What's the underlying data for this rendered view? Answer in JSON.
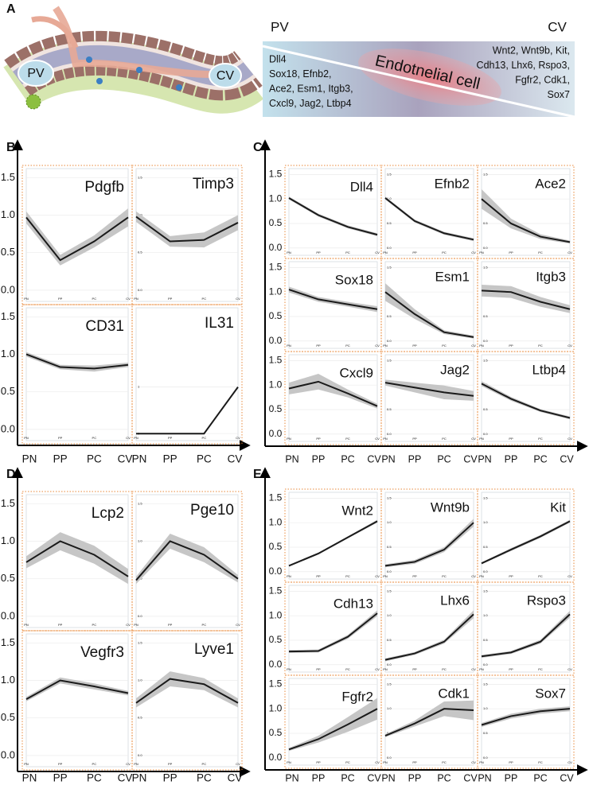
{
  "panel_labels": [
    "A",
    "B",
    "C",
    "D",
    "E"
  ],
  "diagram": {
    "illus_pv": "PV",
    "illus_cv": "CV",
    "left": "PV",
    "right": "CV",
    "center": "Endotnelial cell",
    "pv_genes": [
      "Dll4",
      "Sox18, Efnb2,",
      "Ace2, Esm1, Itgb3,",
      "Cxcl9, Jag2, Ltbp4"
    ],
    "cv_genes": [
      "Wnt2, Wnt9b, Kit,",
      "Cdh13, Lhx6, Rspo3,",
      "Fgfr2, Cdk1,",
      "Sox7"
    ]
  },
  "chart_data": [
    {
      "type": "line",
      "title": "Pdgfb",
      "categories": [
        "PN",
        "PP",
        "PC",
        "CV"
      ],
      "values": [
        0.97,
        0.4,
        0.65,
        0.97
      ],
      "errors": [
        0.08,
        0.07,
        0.08,
        0.12
      ],
      "ylim": [
        -0.15,
        1.62
      ],
      "yticks": [
        {
          "value": 0,
          "label": "0.0"
        },
        0.5,
        {
          "value": 1,
          "label": "1.0"
        },
        {
          "value": 1.5,
          "label": "1.5"
        }
      ],
      "color": "#1a1a1a",
      "band_color": "#c6c6c6",
      "grid": true
    },
    {
      "type": "line",
      "title": "Timp3",
      "categories": [
        "PN",
        "PP",
        "PC",
        "CV"
      ],
      "values": [
        0.98,
        0.65,
        0.67,
        0.9
      ],
      "errors": [
        0.07,
        0.07,
        0.1,
        0.1
      ],
      "ylim": [
        -0.15,
        1.62
      ],
      "yticks": [
        {
          "value": 0,
          "label": "0.0"
        },
        0.5,
        {
          "value": 1,
          "label": "1.0"
        },
        {
          "value": 1.5,
          "label": "1.5"
        }
      ],
      "color": "#1a1a1a",
      "band_color": "#c6c6c6",
      "grid": true
    },
    {
      "type": "line",
      "title": "CD31",
      "categories": [
        "PN",
        "PP",
        "PC",
        "CV"
      ],
      "values": [
        1.0,
        0.83,
        0.81,
        0.86
      ],
      "errors": [
        0.03,
        0.03,
        0.04,
        0.03
      ],
      "ylim": [
        -0.15,
        1.62
      ],
      "yticks": [
        {
          "value": 0,
          "label": "0.0"
        },
        0.5,
        {
          "value": 1,
          "label": "1.0"
        },
        {
          "value": 1.5,
          "label": "1.5"
        }
      ],
      "color": "#1a1a1a",
      "band_color": "#c6c6c6",
      "grid": true
    },
    {
      "type": "line",
      "title": "IL31",
      "categories": [
        "PN",
        "PP",
        "PC",
        "CV"
      ],
      "values": [
        0,
        0,
        0,
        1
      ],
      "errors": [
        0,
        0,
        0,
        0
      ],
      "ylim": [
        -0.15,
        2.7
      ],
      "yticks": [
        0,
        1
      ],
      "color": "#1a1a1a",
      "band_color": "#c6c6c6",
      "grid": true
    },
    {
      "type": "line",
      "title": "Dll4",
      "categories": [
        "PN",
        "PP",
        "PC",
        "CV"
      ],
      "values": [
        1.02,
        0.67,
        0.43,
        0.27
      ],
      "errors": [
        0.03,
        0.03,
        0.03,
        0.03
      ],
      "ylim": [
        -0.15,
        1.62
      ],
      "yticks": [
        {
          "value": 0,
          "label": "0.0"
        },
        0.5,
        {
          "value": 1,
          "label": "1.0"
        },
        {
          "value": 1.5,
          "label": "1.5"
        }
      ],
      "color": "#1a1a1a",
      "band_color": "#c6c6c6",
      "grid": true
    },
    {
      "type": "line",
      "title": "Efnb2",
      "categories": [
        "PN",
        "PP",
        "PC",
        "CV"
      ],
      "values": [
        1.02,
        0.55,
        0.3,
        0.17
      ],
      "errors": [
        0.03,
        0.03,
        0.03,
        0.03
      ],
      "ylim": [
        -0.15,
        1.62
      ],
      "yticks": [
        {
          "value": 0,
          "label": "0.0"
        },
        0.5,
        {
          "value": 1,
          "label": "1.0"
        },
        {
          "value": 1.5,
          "label": "1.5"
        }
      ],
      "color": "#1a1a1a",
      "band_color": "#c6c6c6",
      "grid": true
    },
    {
      "type": "line",
      "title": "Ace2",
      "categories": [
        "PN",
        "PP",
        "PC",
        "CV"
      ],
      "values": [
        1.0,
        0.5,
        0.23,
        0.12
      ],
      "errors": [
        0.2,
        0.1,
        0.05,
        0.03
      ],
      "ylim": [
        -0.15,
        1.62
      ],
      "yticks": [
        {
          "value": 0,
          "label": "0.0"
        },
        0.5,
        {
          "value": 1,
          "label": "1.0"
        },
        {
          "value": 1.5,
          "label": "1.5"
        }
      ],
      "color": "#1a1a1a",
      "band_color": "#c6c6c6",
      "grid": true
    },
    {
      "type": "line",
      "title": "Sox18",
      "categories": [
        "PN",
        "PP",
        "PC",
        "CV"
      ],
      "values": [
        1.05,
        0.85,
        0.75,
        0.65
      ],
      "errors": [
        0.06,
        0.05,
        0.05,
        0.06
      ],
      "ylim": [
        -0.15,
        1.62
      ],
      "yticks": [
        {
          "value": 0,
          "label": "0.0"
        },
        0.5,
        {
          "value": 1,
          "label": "1.0"
        },
        {
          "value": 1.5,
          "label": "1.5"
        }
      ],
      "color": "#1a1a1a",
      "band_color": "#c6c6c6",
      "grid": true
    },
    {
      "type": "line",
      "title": "Esm1",
      "categories": [
        "PN",
        "PP",
        "PC",
        "CV"
      ],
      "values": [
        1.0,
        0.55,
        0.18,
        0.08
      ],
      "errors": [
        0.18,
        0.1,
        0.04,
        0.03
      ],
      "ylim": [
        -0.15,
        1.62
      ],
      "yticks": [
        {
          "value": 0,
          "label": "0.0"
        },
        0.5,
        {
          "value": 1,
          "label": "1.0"
        },
        {
          "value": 1.5,
          "label": "1.5"
        }
      ],
      "color": "#1a1a1a",
      "band_color": "#c6c6c6",
      "grid": true
    },
    {
      "type": "line",
      "title": "Itgb3",
      "categories": [
        "PN",
        "PP",
        "PC",
        "CV"
      ],
      "values": [
        1.03,
        1.0,
        0.8,
        0.65
      ],
      "errors": [
        0.12,
        0.12,
        0.1,
        0.08
      ],
      "ylim": [
        -0.15,
        1.62
      ],
      "yticks": [
        {
          "value": 0,
          "label": "0.0"
        },
        0.5,
        {
          "value": 1,
          "label": "1.0"
        },
        {
          "value": 1.5,
          "label": "1.5"
        }
      ],
      "color": "#1a1a1a",
      "band_color": "#c6c6c6",
      "grid": true
    },
    {
      "type": "line",
      "title": "Cxcl9",
      "categories": [
        "PN",
        "PP",
        "PC",
        "CV"
      ],
      "values": [
        0.93,
        1.07,
        0.83,
        0.57
      ],
      "errors": [
        0.12,
        0.16,
        0.08,
        0.05
      ],
      "ylim": [
        -0.15,
        1.62
      ],
      "yticks": [
        {
          "value": 0,
          "label": "0.0"
        },
        0.5,
        {
          "value": 1,
          "label": "1.0"
        },
        {
          "value": 1.5,
          "label": "1.5"
        }
      ],
      "color": "#1a1a1a",
      "band_color": "#c6c6c6",
      "grid": true
    },
    {
      "type": "line",
      "title": "Jag2",
      "categories": [
        "PN",
        "PP",
        "PC",
        "CV"
      ],
      "values": [
        1.05,
        0.95,
        0.85,
        0.78
      ],
      "errors": [
        0.06,
        0.1,
        0.14,
        0.1
      ],
      "ylim": [
        -0.15,
        1.62
      ],
      "yticks": [
        {
          "value": 0,
          "label": "0.0"
        },
        0.5,
        {
          "value": 1,
          "label": "1.0"
        },
        {
          "value": 1.5,
          "label": "1.5"
        }
      ],
      "color": "#1a1a1a",
      "band_color": "#c6c6c6",
      "grid": true
    },
    {
      "type": "line",
      "title": "Ltbp4",
      "categories": [
        "PN",
        "PP",
        "PC",
        "CV"
      ],
      "values": [
        1.03,
        0.72,
        0.48,
        0.33
      ],
      "errors": [
        0.05,
        0.04,
        0.03,
        0.03
      ],
      "ylim": [
        -0.15,
        1.62
      ],
      "yticks": [
        {
          "value": 0,
          "label": "0.0"
        },
        0.5,
        {
          "value": 1,
          "label": "1.0"
        },
        {
          "value": 1.5,
          "label": "1.5"
        }
      ],
      "color": "#1a1a1a",
      "band_color": "#c6c6c6",
      "grid": true
    },
    {
      "type": "line",
      "title": "Lcp2",
      "categories": [
        "PN",
        "PP",
        "PC",
        "CV"
      ],
      "values": [
        0.72,
        1.0,
        0.82,
        0.53
      ],
      "errors": [
        0.08,
        0.12,
        0.12,
        0.1
      ],
      "ylim": [
        -0.15,
        1.62
      ],
      "yticks": [
        {
          "value": 0,
          "label": "0.0"
        },
        0.5,
        {
          "value": 1,
          "label": "1.0"
        },
        {
          "value": 1.5,
          "label": "1.5"
        }
      ],
      "color": "#1a1a1a",
      "band_color": "#c6c6c6",
      "grid": true
    },
    {
      "type": "line",
      "title": "Pge10",
      "categories": [
        "PN",
        "PP",
        "PC",
        "CV"
      ],
      "values": [
        0.48,
        1.0,
        0.82,
        0.5
      ],
      "errors": [
        0.05,
        0.1,
        0.1,
        0.05
      ],
      "ylim": [
        -0.15,
        1.62
      ],
      "yticks": [
        {
          "value": 0,
          "label": "0.0"
        },
        0.5,
        {
          "value": 1,
          "label": "1.0"
        },
        {
          "value": 1.5,
          "label": "1.5"
        }
      ],
      "color": "#1a1a1a",
      "band_color": "#c6c6c6",
      "grid": true
    },
    {
      "type": "line",
      "title": "Vegfr3",
      "categories": [
        "PN",
        "PP",
        "PC",
        "CV"
      ],
      "values": [
        0.75,
        1.0,
        0.92,
        0.83
      ],
      "errors": [
        0.03,
        0.04,
        0.04,
        0.03
      ],
      "ylim": [
        -0.15,
        1.62
      ],
      "yticks": [
        {
          "value": 0,
          "label": "0.0"
        },
        0.5,
        {
          "value": 1,
          "label": "1.0"
        },
        {
          "value": 1.5,
          "label": "1.5"
        }
      ],
      "color": "#1a1a1a",
      "band_color": "#c6c6c6",
      "grid": true
    },
    {
      "type": "line",
      "title": "Lyve1",
      "categories": [
        "PN",
        "PP",
        "PC",
        "CV"
      ],
      "values": [
        0.7,
        1.02,
        0.95,
        0.7
      ],
      "errors": [
        0.06,
        0.1,
        0.08,
        0.06
      ],
      "ylim": [
        -0.15,
        1.62
      ],
      "yticks": [
        {
          "value": 0,
          "label": "0.0"
        },
        0.5,
        {
          "value": 1,
          "label": "1.0"
        },
        {
          "value": 1.5,
          "label": "1.5"
        }
      ],
      "color": "#1a1a1a",
      "band_color": "#c6c6c6",
      "grid": true
    },
    {
      "type": "line",
      "title": "Wnt2",
      "categories": [
        "PN",
        "PP",
        "PC",
        "CV"
      ],
      "values": [
        0.12,
        0.37,
        0.7,
        1.03
      ],
      "errors": [
        0.02,
        0.02,
        0.02,
        0.03
      ],
      "ylim": [
        -0.15,
        1.62
      ],
      "yticks": [
        {
          "value": 0,
          "label": "0.0"
        },
        0.5,
        {
          "value": 1,
          "label": "1.0"
        },
        {
          "value": 1.5,
          "label": "1.5"
        }
      ],
      "color": "#1a1a1a",
      "band_color": "#c6c6c6",
      "grid": true
    },
    {
      "type": "line",
      "title": "Wnt9b",
      "categories": [
        "PN",
        "PP",
        "PC",
        "CV"
      ],
      "values": [
        0.12,
        0.2,
        0.45,
        1.0
      ],
      "errors": [
        0.03,
        0.04,
        0.05,
        0.08
      ],
      "ylim": [
        -0.15,
        1.62
      ],
      "yticks": [
        {
          "value": 0,
          "label": "0.0"
        },
        0.5,
        {
          "value": 1,
          "label": "1.0"
        },
        {
          "value": 1.5,
          "label": "1.5"
        }
      ],
      "color": "#1a1a1a",
      "band_color": "#c6c6c6",
      "grid": true
    },
    {
      "type": "line",
      "title": "Kit",
      "categories": [
        "PN",
        "PP",
        "PC",
        "CV"
      ],
      "values": [
        0.17,
        0.45,
        0.72,
        1.03
      ],
      "errors": [
        0.02,
        0.03,
        0.03,
        0.03
      ],
      "ylim": [
        -0.15,
        1.62
      ],
      "yticks": [
        {
          "value": 0,
          "label": "0.0"
        },
        0.5,
        {
          "value": 1,
          "label": "1.0"
        },
        {
          "value": 1.5,
          "label": "1.5"
        }
      ],
      "color": "#1a1a1a",
      "band_color": "#c6c6c6",
      "grid": true
    },
    {
      "type": "line",
      "title": "Cdh13",
      "categories": [
        "PN",
        "PP",
        "PC",
        "CV"
      ],
      "values": [
        0.27,
        0.28,
        0.57,
        1.05
      ],
      "errors": [
        0.03,
        0.03,
        0.04,
        0.06
      ],
      "ylim": [
        -0.15,
        1.62
      ],
      "yticks": [
        {
          "value": 0,
          "label": "0.0"
        },
        0.5,
        {
          "value": 1,
          "label": "1.0"
        },
        {
          "value": 1.5,
          "label": "1.5"
        }
      ],
      "color": "#1a1a1a",
      "band_color": "#c6c6c6",
      "grid": true
    },
    {
      "type": "line",
      "title": "Lhx6",
      "categories": [
        "PN",
        "PP",
        "PC",
        "CV"
      ],
      "values": [
        0.1,
        0.23,
        0.47,
        1.03
      ],
      "errors": [
        0.03,
        0.03,
        0.04,
        0.08
      ],
      "ylim": [
        -0.15,
        1.62
      ],
      "yticks": [
        {
          "value": 0,
          "label": "0.0"
        },
        0.5,
        {
          "value": 1,
          "label": "1.0"
        },
        {
          "value": 1.5,
          "label": "1.5"
        }
      ],
      "color": "#1a1a1a",
      "band_color": "#c6c6c6",
      "grid": true
    },
    {
      "type": "line",
      "title": "Rspo3",
      "categories": [
        "PN",
        "PP",
        "PC",
        "CV"
      ],
      "values": [
        0.17,
        0.25,
        0.47,
        1.03
      ],
      "errors": [
        0.03,
        0.03,
        0.04,
        0.07
      ],
      "ylim": [
        -0.15,
        1.62
      ],
      "yticks": [
        {
          "value": 0,
          "label": "0.0"
        },
        0.5,
        {
          "value": 1,
          "label": "1.0"
        },
        {
          "value": 1.5,
          "label": "1.5"
        }
      ],
      "color": "#1a1a1a",
      "band_color": "#c6c6c6",
      "grid": true
    },
    {
      "type": "line",
      "title": "Fgfr2",
      "categories": [
        "PN",
        "PP",
        "PC",
        "CV"
      ],
      "values": [
        0.17,
        0.38,
        0.68,
        1.0
      ],
      "errors": [
        0.03,
        0.07,
        0.15,
        0.22
      ],
      "ylim": [
        -0.15,
        1.62
      ],
      "yticks": [
        {
          "value": 0,
          "label": "0.0"
        },
        0.5,
        {
          "value": 1,
          "label": "1.0"
        },
        {
          "value": 1.5,
          "label": "1.5"
        }
      ],
      "color": "#1a1a1a",
      "band_color": "#c6c6c6",
      "grid": true
    },
    {
      "type": "line",
      "title": "Cdk1",
      "categories": [
        "PN",
        "PP",
        "PC",
        "CV"
      ],
      "values": [
        0.45,
        0.7,
        1.0,
        0.97
      ],
      "errors": [
        0.03,
        0.06,
        0.15,
        0.2
      ],
      "ylim": [
        -0.15,
        1.62
      ],
      "yticks": [
        {
          "value": 0,
          "label": "0.0"
        },
        0.5,
        {
          "value": 1,
          "label": "1.0"
        },
        {
          "value": 1.5,
          "label": "1.5"
        }
      ],
      "color": "#1a1a1a",
      "band_color": "#c6c6c6",
      "grid": true
    },
    {
      "type": "line",
      "title": "Sox7",
      "categories": [
        "PN",
        "PP",
        "PC",
        "CV"
      ],
      "values": [
        0.67,
        0.85,
        0.95,
        1.0
      ],
      "errors": [
        0.04,
        0.05,
        0.05,
        0.05
      ],
      "ylim": [
        -0.15,
        1.62
      ],
      "yticks": [
        {
          "value": 0,
          "label": "0.0"
        },
        0.5,
        {
          "value": 1,
          "label": "1.0"
        },
        {
          "value": 1.5,
          "label": "1.5"
        }
      ],
      "color": "#1a1a1a",
      "band_color": "#c6c6c6",
      "grid": true
    }
  ]
}
